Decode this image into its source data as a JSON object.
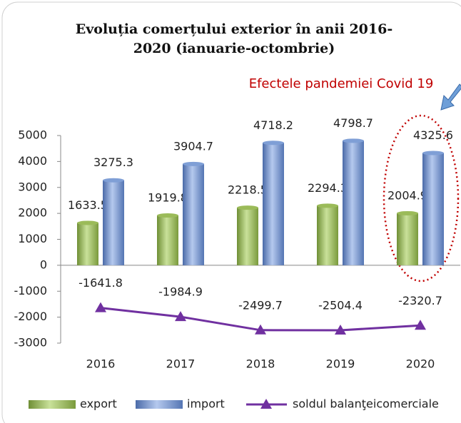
{
  "chart_data": {
    "type": "bar",
    "title": "Evoluția comerțului exterior în anii 2016-2020 (ianuarie-octombrie)",
    "annotation": "Efectele pandemiei Covid 19",
    "categories": [
      "2016",
      "2017",
      "2018",
      "2019",
      "2020"
    ],
    "series": [
      {
        "name": "export",
        "color": "#9bbb59",
        "values": [
          1633.5,
          1919.8,
          2218.5,
          2294.3,
          2004.9
        ]
      },
      {
        "name": "import",
        "color": "#7f9fd6",
        "values": [
          3275.3,
          3904.7,
          4718.2,
          4798.7,
          4325.6
        ]
      },
      {
        "name": "soldul balanţeicomerciale",
        "type": "line",
        "color": "#7030a0",
        "values": [
          -1641.8,
          -1984.9,
          -2499.7,
          -2504.4,
          -2320.7
        ]
      }
    ],
    "ylim": [
      -3000,
      5000
    ],
    "yticks": [
      -3000,
      -2000,
      -1000,
      0,
      1000,
      2000,
      3000,
      4000,
      5000
    ],
    "grid": false
  }
}
